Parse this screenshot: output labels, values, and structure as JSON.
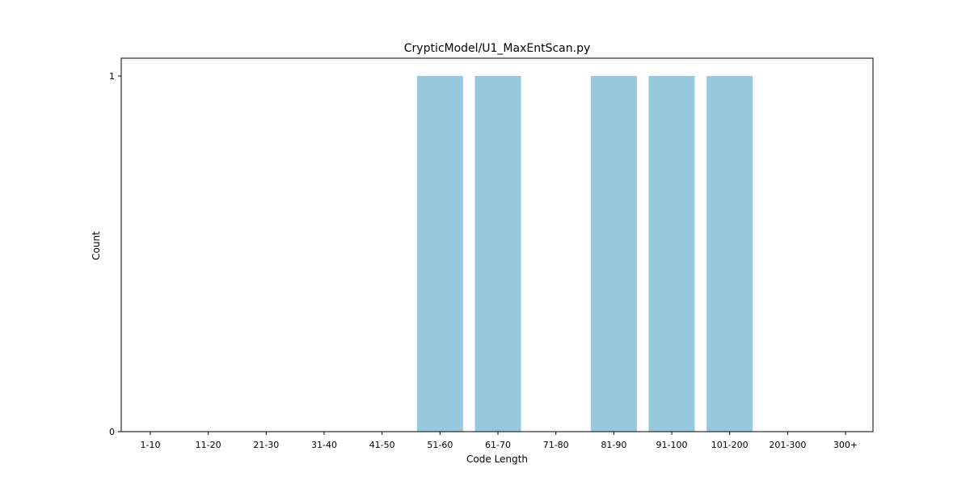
{
  "chart_data": {
    "type": "bar",
    "title": "CrypticModel/U1_MaxEntScan.py",
    "xlabel": "Code Length",
    "ylabel": "Count",
    "categories": [
      "1-10",
      "11-20",
      "21-30",
      "31-40",
      "41-50",
      "51-60",
      "61-70",
      "71-80",
      "81-90",
      "91-100",
      "101-200",
      "201-300",
      "300+"
    ],
    "values": [
      0,
      0,
      0,
      0,
      0,
      1,
      1,
      0,
      1,
      1,
      1,
      0,
      0
    ],
    "ylim": [
      0,
      1
    ],
    "yticks": [
      0,
      1
    ],
    "bar_color": "#96c9dd",
    "grid": false,
    "legend": false
  }
}
